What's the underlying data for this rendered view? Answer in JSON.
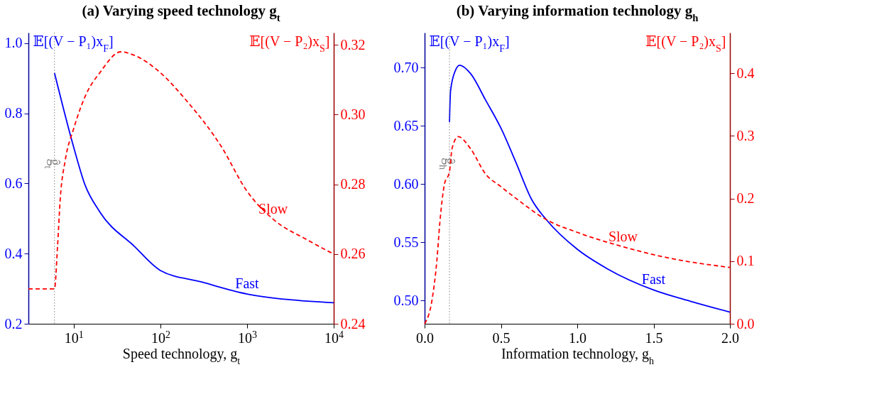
{
  "chart_data": [
    {
      "type": "line",
      "title": "(a) Varying speed technology g$_{t}$",
      "xlabel": "Speed technology, g$_{t}$",
      "ylabel": "𝔼[(V − P₁)x$_{F}$]",
      "y2label": "𝔼[(V − P₂)x$_{S}$]",
      "log": "x",
      "xlim": [
        3,
        10000
      ],
      "xticks": [
        {
          "value": 10,
          "label": "10$^{1}$"
        },
        {
          "value": 100,
          "label": "10$^{2}$"
        },
        {
          "value": 1000,
          "label": "10$^{3}$"
        },
        {
          "value": 10000,
          "label": "10$^{4}$"
        }
      ],
      "ylim": [
        0.2,
        1.03
      ],
      "yticks": [
        0.2,
        0.4,
        0.6,
        0.8,
        {
          "value": 1,
          "label": "1.0"
        }
      ],
      "y2lim": [
        0.24,
        0.3235
      ],
      "y2ticks": [
        0.24,
        0.26,
        0.28,
        {
          "value": 0.3,
          "label": "0.30"
        },
        0.32
      ],
      "ref_lines": [
        {
          "axis": "x",
          "value": 6,
          "label": "ĝ$_{t}$",
          "color": "#808080",
          "line_style": "dotted"
        }
      ],
      "series": [
        {
          "name": "Fast",
          "color": "#0000ff",
          "line_style": "solid",
          "x": [
            6,
            10,
            13.4,
            20,
            50,
            100,
            300,
            1000,
            3000,
            10000
          ],
          "values": [
            0.915,
            0.703,
            0.598,
            0.519,
            0.421,
            0.352,
            0.319,
            0.285,
            0.269,
            0.26
          ]
        },
        {
          "name": "Slow",
          "color": "#ff0000",
          "line_style": "dashed",
          "axis": "y2",
          "x": [
            3,
            6,
            6.5,
            7,
            8,
            10,
            14,
            20,
            35,
            50,
            100,
            200,
            500,
            1000,
            2000,
            5000,
            10000
          ],
          "values": [
            0.25,
            0.25,
            0.262,
            0.276,
            0.287,
            0.296,
            0.306,
            0.312,
            0.318,
            0.317,
            0.312,
            0.304,
            0.291,
            0.278,
            0.27,
            0.264,
            0.26
          ]
        }
      ]
    },
    {
      "type": "line",
      "title": "(b) Varying information technology g$_{h}$",
      "xlabel": "Information technology, g$_{h}$",
      "ylabel": "𝔼[(V − P₁)x$_{F}$]",
      "y2label": "𝔼[(V − P₂)x$_{S}$]",
      "xlim": [
        0,
        2
      ],
      "xticks": [
        {
          "value": 0,
          "label": "0.0"
        },
        0.5,
        {
          "value": 1,
          "label": "1.0"
        },
        1.5,
        {
          "value": 2,
          "label": "2.0"
        }
      ],
      "ylim": [
        0.48,
        0.73
      ],
      "yticks": [
        {
          "value": 0.5,
          "label": "0.50"
        },
        0.55,
        {
          "value": 0.6,
          "label": "0.60"
        },
        0.65,
        {
          "value": 0.7,
          "label": "0.70"
        }
      ],
      "y2lim": [
        0,
        0.465
      ],
      "y2ticks": [
        {
          "value": 0,
          "label": "0.0"
        },
        0.1,
        0.2,
        0.3,
        0.4
      ],
      "ref_lines": [
        {
          "axis": "x",
          "value": 0.163,
          "label": "ĝ$_{h}$",
          "color": "#808080",
          "line_style": "dotted"
        }
      ],
      "series": [
        {
          "name": "Fast",
          "color": "#0000ff",
          "line_style": "solid",
          "x": [
            0.163,
            0.17,
            0.2,
            0.23,
            0.3,
            0.4,
            0.5,
            0.6,
            0.7,
            0.8,
            1.0,
            1.2,
            1.5,
            1.75,
            2.0
          ],
          "values": [
            0.653,
            0.68,
            0.697,
            0.702,
            0.695,
            0.672,
            0.648,
            0.618,
            0.587,
            0.569,
            0.544,
            0.527,
            0.509,
            0.499,
            0.49
          ]
        },
        {
          "name": "Slow",
          "color": "#ff0000",
          "line_style": "dashed",
          "axis": "y2",
          "x": [
            0,
            0.05,
            0.08,
            0.1,
            0.13,
            0.163,
            0.18,
            0.22,
            0.3,
            0.4,
            0.5,
            0.6,
            0.8,
            1.0,
            1.3,
            1.6,
            2.0
          ],
          "values": [
            0,
            0.04,
            0.1,
            0.162,
            0.223,
            0.243,
            0.28,
            0.299,
            0.28,
            0.239,
            0.219,
            0.2,
            0.166,
            0.146,
            0.123,
            0.105,
            0.09
          ]
        }
      ]
    }
  ]
}
